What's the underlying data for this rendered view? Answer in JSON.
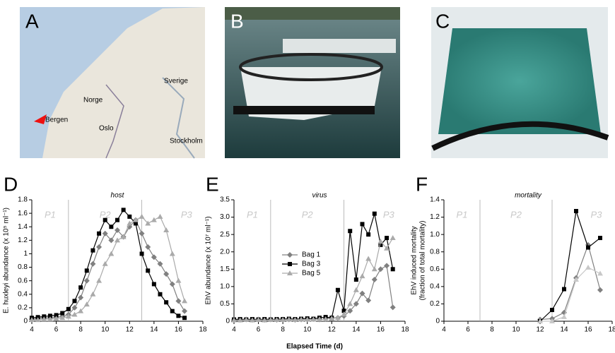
{
  "panels": {
    "A": "A",
    "B": "B",
    "C": "C"
  },
  "map_labels": [
    "Norge",
    "Sverige",
    "Bergen",
    "Oslo",
    "Stockholm"
  ],
  "xlabel": "Elapsed Time (d)",
  "chart_data": [
    {
      "type": "line",
      "panel": "D",
      "title": "host",
      "ylabel": "E. huxleyi abundance (x 10⁵ ml⁻¹)",
      "x": [
        4,
        4.5,
        5,
        5.5,
        6,
        6.5,
        7,
        7.5,
        8,
        8.5,
        9,
        9.5,
        10,
        10.5,
        11,
        11.5,
        12,
        12.5,
        13,
        13.5,
        14,
        14.5,
        15,
        15.5,
        16,
        16.5
      ],
      "series": [
        {
          "color": "#808080",
          "marker": "diamond",
          "values": [
            0.03,
            0.04,
            0.05,
            0.05,
            0.06,
            0.07,
            0.1,
            0.2,
            0.35,
            0.6,
            0.85,
            1.1,
            1.3,
            1.2,
            1.35,
            1.25,
            1.4,
            1.5,
            1.3,
            1.1,
            0.95,
            0.85,
            0.7,
            0.55,
            0.3,
            0.15
          ]
        },
        {
          "color": "#000000",
          "marker": "square",
          "values": [
            0.05,
            0.06,
            0.07,
            0.08,
            0.09,
            0.12,
            0.18,
            0.3,
            0.5,
            0.75,
            1.05,
            1.3,
            1.5,
            1.4,
            1.5,
            1.65,
            1.55,
            1.45,
            1.0,
            0.75,
            0.55,
            0.4,
            0.28,
            0.15,
            0.08,
            0.05
          ]
        },
        {
          "color": "#aaaaaa",
          "marker": "triangle",
          "values": [
            0.02,
            0.02,
            0.03,
            0.03,
            0.04,
            0.05,
            0.07,
            0.1,
            0.15,
            0.25,
            0.4,
            0.6,
            0.85,
            1.0,
            1.2,
            1.25,
            1.45,
            1.5,
            1.55,
            1.45,
            1.5,
            1.55,
            1.35,
            1.0,
            0.6,
            0.3
          ]
        }
      ],
      "xlim": [
        4,
        18
      ],
      "xticks": [
        4,
        6,
        8,
        10,
        12,
        14,
        16,
        18
      ],
      "ylim": [
        0,
        1.8
      ],
      "yticks": [
        0,
        0.2,
        0.4,
        0.6,
        0.8,
        1,
        1.2,
        1.4,
        1.6,
        1.8
      ],
      "vlines": [
        7,
        13
      ],
      "phases": [
        "P1",
        "P2",
        "P3"
      ]
    },
    {
      "type": "line",
      "panel": "E",
      "title": "virus",
      "ylabel": "EhV abundance (x 10⁷ ml⁻¹)",
      "x": [
        4,
        4.5,
        5,
        5.5,
        6,
        6.5,
        7,
        7.5,
        8,
        8.5,
        9,
        9.5,
        10,
        10.5,
        11,
        11.5,
        12,
        12.5,
        13,
        13.5,
        14,
        14.5,
        15,
        15.5,
        16,
        16.5,
        17
      ],
      "series": [
        {
          "name": "Bag 1",
          "color": "#808080",
          "marker": "diamond",
          "values": [
            0.04,
            0.04,
            0.05,
            0.04,
            0.05,
            0.04,
            0.05,
            0.04,
            0.05,
            0.05,
            0.04,
            0.05,
            0.05,
            0.06,
            0.05,
            0.07,
            0.1,
            0.1,
            0.15,
            0.3,
            0.5,
            0.8,
            0.6,
            1.2,
            1.5,
            1.6,
            0.4
          ]
        },
        {
          "name": "Bag 3",
          "color": "#000000",
          "marker": "square",
          "values": [
            0.05,
            0.06,
            0.05,
            0.06,
            0.05,
            0.06,
            0.05,
            0.06,
            0.06,
            0.07,
            0.06,
            0.07,
            0.08,
            0.07,
            0.1,
            0.12,
            0.1,
            0.9,
            0.3,
            2.6,
            1.2,
            2.8,
            2.5,
            3.1,
            2.2,
            2.4,
            1.5
          ]
        },
        {
          "name": "Bag 5",
          "color": "#aaaaaa",
          "marker": "triangle",
          "values": [
            0.03,
            0.03,
            0.04,
            0.03,
            0.04,
            0.03,
            0.04,
            0.04,
            0.04,
            0.05,
            0.04,
            0.05,
            0.05,
            0.05,
            0.06,
            0.06,
            0.08,
            0.1,
            0.2,
            0.5,
            0.9,
            1.3,
            1.8,
            1.5,
            2.3,
            2.1,
            2.4
          ]
        }
      ],
      "legend": "center-left",
      "xlim": [
        4,
        18
      ],
      "xticks": [
        4,
        6,
        8,
        10,
        12,
        14,
        16,
        18
      ],
      "ylim": [
        0,
        3.5
      ],
      "yticks": [
        0,
        0.5,
        {
          "value": 1,
          "label": "1.0"
        },
        1.5,
        {
          "value": 2,
          "label": "2.0"
        },
        2.5,
        {
          "value": 3,
          "label": "3.0"
        },
        3.5
      ],
      "vlines": [
        7,
        13
      ],
      "phases": [
        "P1",
        "P2",
        "P3"
      ]
    },
    {
      "type": "line",
      "panel": "F",
      "title": "mortality",
      "ylabel": [
        "EhV induced mortality",
        "(fraction of total mortality)"
      ],
      "x": [
        12,
        13,
        14,
        15,
        16,
        17
      ],
      "series": [
        {
          "color": "#808080",
          "marker": "diamond",
          "values": [
            0.02,
            0.03,
            0.1,
            0.5,
            0.88,
            0.36
          ]
        },
        {
          "color": "#000000",
          "marker": "square",
          "values": [
            0,
            0.13,
            0.37,
            1.27,
            0.85,
            0.96
          ]
        },
        {
          "color": "#c8c8c8",
          "marker": "triangle",
          "values": [
            0,
            0,
            0.05,
            0.48,
            0.62,
            0.55
          ]
        }
      ],
      "xlim": [
        4,
        18
      ],
      "xticks": [
        4,
        6,
        8,
        10,
        12,
        14,
        16,
        18
      ],
      "ylim": [
        0,
        1.4
      ],
      "yticks": [
        0,
        0.2,
        0.4,
        0.6,
        0.8,
        {
          "value": 1,
          "label": "1.0"
        },
        1.2,
        1.4
      ],
      "vlines": [
        7,
        13
      ],
      "phases": [
        "P1",
        "P2",
        "P3"
      ]
    }
  ]
}
